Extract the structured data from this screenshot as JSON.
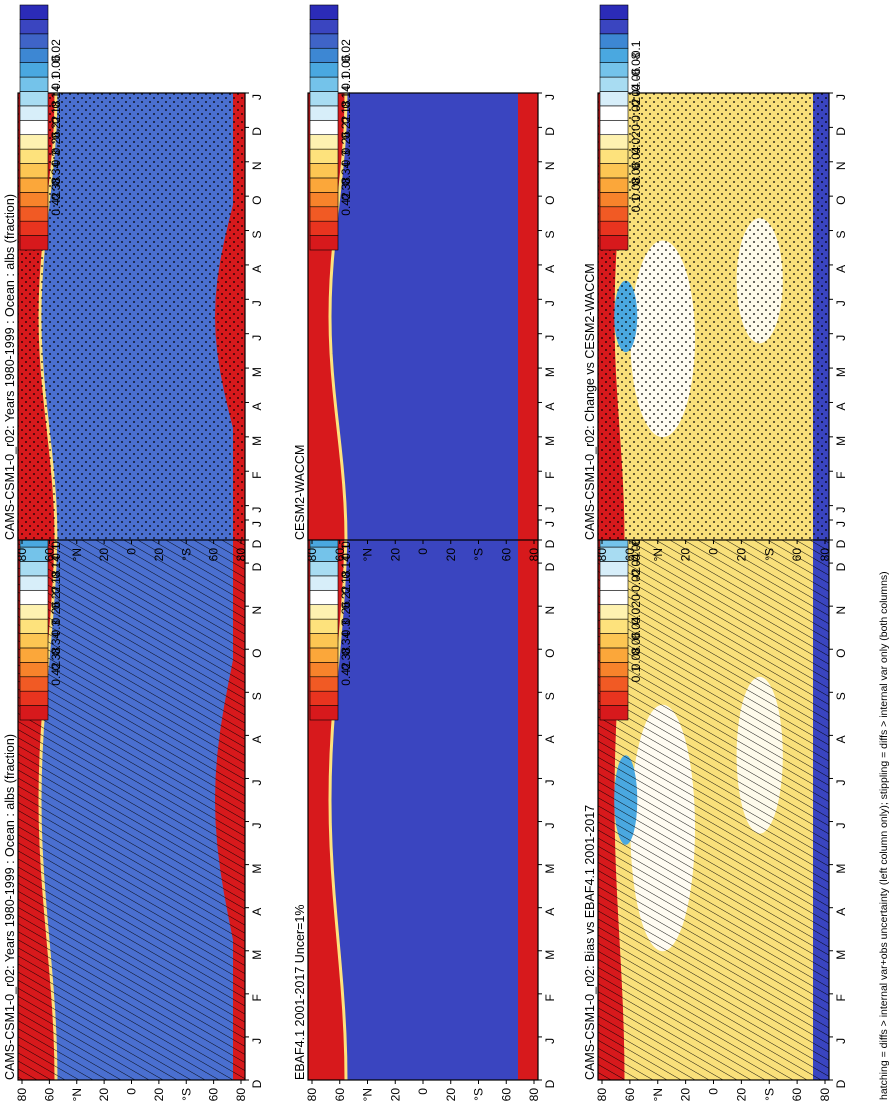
{
  "figure": {
    "footnote": "hatching = diffs > internal var+obs uncertainty (left column only); stippling = diffs > internal var only (both columns)"
  },
  "panels": [
    {
      "id": "p11",
      "title": "CAMS-CSM1-0_r02: Years 1980-1999 : Ocean : albs (fraction)",
      "kind": "abs",
      "pattern": "hatch",
      "col": 0,
      "row": 0
    },
    {
      "id": "p12",
      "title": "CAMS-CSM1-0_r02: Years 1980-1999 : Ocean : albs (fraction)",
      "kind": "abs",
      "pattern": "stipple",
      "col": 1,
      "row": 0
    },
    {
      "id": "p21",
      "title": "EBAF4.1 2001-2017 Uncer=1%",
      "kind": "abs2",
      "pattern": "none",
      "col": 0,
      "row": 1
    },
    {
      "id": "p22",
      "title": "CESM2-WACCM",
      "kind": "abs2",
      "pattern": "none",
      "col": 1,
      "row": 1
    },
    {
      "id": "p31",
      "title": "CAMS-CSM1-0_r02: Bias vs EBAF4.1 2001-2017",
      "kind": "diff",
      "pattern": "hatch",
      "col": 0,
      "row": 2
    },
    {
      "id": "p32",
      "title": "CAMS-CSM1-0_r02: Change vs CESM2-WACCM",
      "kind": "diff",
      "pattern": "stipple",
      "col": 1,
      "row": 2
    }
  ],
  "axes": {
    "months": [
      "D",
      "J",
      "F",
      "M",
      "A",
      "M",
      "J",
      "J",
      "A",
      "S",
      "O",
      "N",
      "D",
      "J"
    ],
    "lat_ticks": [
      "80",
      "60",
      "°N",
      "20",
      "0",
      "20",
      "°S",
      "60",
      "80"
    ]
  },
  "colorbars": {
    "abs": {
      "labels": [
        "0.42",
        "0.38",
        "0.34",
        "0.3",
        "0.26",
        "0.22",
        "0.18",
        "0.14",
        "0.1",
        "0.06",
        "0.02"
      ],
      "colors": [
        "#d7191c",
        "#e8341f",
        "#f15a24",
        "#f7832b",
        "#fba73a",
        "#fcc653",
        "#fde27c",
        "#fef2b0",
        "#ffffff",
        "#d7eef9",
        "#a8dcf2",
        "#74c3ea",
        "#4aa8e0",
        "#3d87d3",
        "#3f64c7",
        "#3a45c0",
        "#2b2bb8"
      ]
    },
    "diff": {
      "labels": [
        "0.1",
        "0.08",
        "0.06",
        "0.04",
        "0.02",
        "0",
        "-0.02",
        "-0.04",
        "-0.06",
        "-0.08",
        "-0.1"
      ],
      "colors": [
        "#d7191c",
        "#e8341f",
        "#f15a24",
        "#f7832b",
        "#fba73a",
        "#fcc653",
        "#fde27c",
        "#fef2b0",
        "#ffffff",
        "#ffffff",
        "#d7eef9",
        "#a8dcf2",
        "#74c3ea",
        "#4aa8e0",
        "#3d87d3",
        "#3a45c0",
        "#2b2bb8"
      ]
    }
  },
  "colors": {
    "red": "#d7191c",
    "blue_mid": "#4a6fd0",
    "blue_dark": "#3a45c0",
    "yellow": "#f9e07a",
    "white": "#ffffff"
  },
  "chart_data": [
    {
      "type": "heatmap",
      "title": "CAMS-CSM1-0_r02: Years 1980-1999 : Ocean : albs (fraction)",
      "x": [
        "D",
        "J",
        "F",
        "M",
        "A",
        "M",
        "J",
        "J",
        "A",
        "S",
        "O",
        "N",
        "D",
        "J"
      ],
      "y": [
        "80",
        "60",
        "°N",
        "20",
        "0",
        "20",
        "°S",
        "60",
        "80"
      ],
      "colorbar": [
        0.42,
        0.38,
        0.34,
        0.3,
        0.26,
        0.22,
        0.18,
        0.14,
        0.1,
        0.06,
        0.02
      ]
    },
    {
      "type": "heatmap",
      "title": "CAMS-CSM1-0_r02: Years 1980-1999 : Ocean : albs (fraction)",
      "x": [
        "D",
        "J",
        "F",
        "M",
        "A",
        "M",
        "J",
        "J",
        "A",
        "S",
        "O",
        "N",
        "D",
        "J"
      ],
      "y": [
        "80",
        "60",
        "°N",
        "20",
        "0",
        "20",
        "°S",
        "60",
        "80"
      ],
      "colorbar": [
        0.42,
        0.38,
        0.34,
        0.3,
        0.26,
        0.22,
        0.18,
        0.14,
        0.1,
        0.06,
        0.02
      ]
    },
    {
      "type": "heatmap",
      "title": "EBAF4.1 2001-2017 Uncer=1%",
      "x": [
        "D",
        "J",
        "F",
        "M",
        "A",
        "M",
        "J",
        "J",
        "A",
        "S",
        "O",
        "N",
        "D",
        "J"
      ],
      "y": [
        "80",
        "60",
        "°N",
        "20",
        "0",
        "20",
        "°S",
        "60",
        "80"
      ],
      "colorbar": [
        0.42,
        0.38,
        0.34,
        0.3,
        0.26,
        0.22,
        0.18,
        0.14,
        0.1,
        0.06,
        0.02
      ]
    },
    {
      "type": "heatmap",
      "title": "CESM2-WACCM",
      "x": [
        "D",
        "J",
        "F",
        "M",
        "A",
        "M",
        "J",
        "J",
        "A",
        "S",
        "O",
        "N",
        "D",
        "J"
      ],
      "y": [
        "80",
        "60",
        "°N",
        "20",
        "0",
        "20",
        "°S",
        "60",
        "80"
      ],
      "colorbar": [
        0.42,
        0.38,
        0.34,
        0.3,
        0.26,
        0.22,
        0.18,
        0.14,
        0.1,
        0.06,
        0.02
      ]
    },
    {
      "type": "heatmap",
      "title": "CAMS-CSM1-0_r02: Bias vs EBAF4.1 2001-2017",
      "x": [
        "D",
        "J",
        "F",
        "M",
        "A",
        "M",
        "J",
        "J",
        "A",
        "S",
        "O",
        "N",
        "D",
        "J"
      ],
      "y": [
        "80",
        "60",
        "°N",
        "20",
        "0",
        "20",
        "°S",
        "60",
        "80"
      ],
      "colorbar": [
        0.1,
        0.08,
        0.06,
        0.04,
        0.02,
        0,
        -0.02,
        -0.04,
        -0.06,
        -0.08,
        -0.1
      ]
    },
    {
      "type": "heatmap",
      "title": "CAMS-CSM1-0_r02: Change vs CESM2-WACCM",
      "x": [
        "D",
        "J",
        "F",
        "M",
        "A",
        "M",
        "J",
        "J",
        "A",
        "S",
        "O",
        "N",
        "D",
        "J"
      ],
      "y": [
        "80",
        "60",
        "°N",
        "20",
        "0",
        "20",
        "°S",
        "60",
        "80"
      ],
      "colorbar": [
        0.1,
        0.08,
        0.06,
        0.04,
        0.02,
        0,
        -0.02,
        -0.04,
        -0.06,
        -0.08,
        -0.1
      ]
    }
  ]
}
